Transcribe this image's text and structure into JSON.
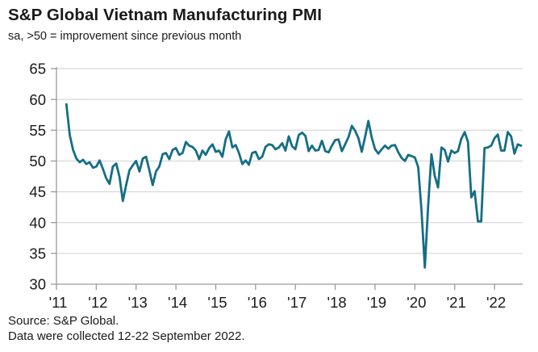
{
  "header": {
    "title": "S&P Global Vietnam Manufacturing PMI",
    "subtitle": "sa, >50 = improvement since previous month"
  },
  "footer": {
    "source": "Source: S&P Global.",
    "note": "Data were collected 12-22 September 2022."
  },
  "chart_data": {
    "type": "line",
    "title": "S&P Global Vietnam Manufacturing PMI",
    "subtitle": "sa, >50 = improvement since previous month",
    "frequency": "monthly",
    "start_month": "2011-04",
    "end_month": "2022-09",
    "ylim": [
      30,
      65
    ],
    "y_ticks": [
      65,
      60,
      55,
      50,
      45,
      40,
      35,
      30
    ],
    "x_tick_labels": [
      "'11",
      "'12",
      "'13",
      "'14",
      "'15",
      "'16",
      "'17",
      "'18",
      "'19",
      "'20",
      "'21",
      "'22"
    ],
    "grid": true,
    "legend": "none",
    "series": [
      {
        "name": "Vietnam Manufacturing PMI (sa)",
        "values": [
          59.2,
          54.2,
          51.8,
          50.4,
          49.8,
          50.2,
          49.5,
          49.8,
          48.9,
          49.1,
          50.1,
          48.7,
          47.2,
          46.3,
          49.1,
          49.6,
          47.4,
          43.5,
          46.1,
          48.5,
          49.3,
          50.0,
          48.3,
          50.4,
          50.7,
          48.5,
          46.1,
          48.3,
          49.1,
          51.1,
          51.3,
          50.3,
          51.8,
          52.1,
          51.0,
          51.3,
          53.1,
          52.5,
          52.3,
          51.7,
          50.3,
          51.7,
          51.0,
          52.1,
          52.7,
          51.5,
          51.7,
          50.7,
          53.5,
          54.8,
          52.2,
          52.6,
          51.3,
          49.5,
          50.1,
          49.4,
          51.3,
          51.5,
          50.3,
          50.7,
          52.3,
          52.7,
          52.6,
          51.9,
          52.2,
          52.9,
          51.7,
          54.0,
          52.4,
          51.9,
          54.2,
          54.6,
          54.1,
          51.6,
          52.5,
          51.7,
          51.8,
          53.3,
          51.6,
          51.4,
          52.5,
          53.4,
          53.5,
          51.6,
          52.7,
          53.9,
          55.7,
          54.9,
          53.7,
          51.5,
          53.9,
          56.5,
          53.8,
          51.9,
          51.2,
          51.9,
          52.5,
          52.0,
          52.5,
          52.6,
          51.4,
          50.5,
          50.0,
          51.0,
          50.8,
          50.6,
          49.0,
          41.9,
          32.7,
          42.7,
          51.1,
          47.6,
          45.7,
          52.2,
          51.8,
          49.9,
          51.7,
          51.3,
          51.6,
          53.6,
          54.7,
          53.1,
          44.1,
          45.1,
          40.2,
          40.2,
          52.1,
          52.2,
          52.5,
          53.7,
          54.3,
          51.7,
          51.7,
          54.7,
          54.0,
          51.2,
          52.7,
          52.5
        ]
      }
    ],
    "colors": {
      "line": "#156E84",
      "grid": "#CFCFCF",
      "axis": "#9A9A9A",
      "text": "#1A1A1A"
    }
  }
}
